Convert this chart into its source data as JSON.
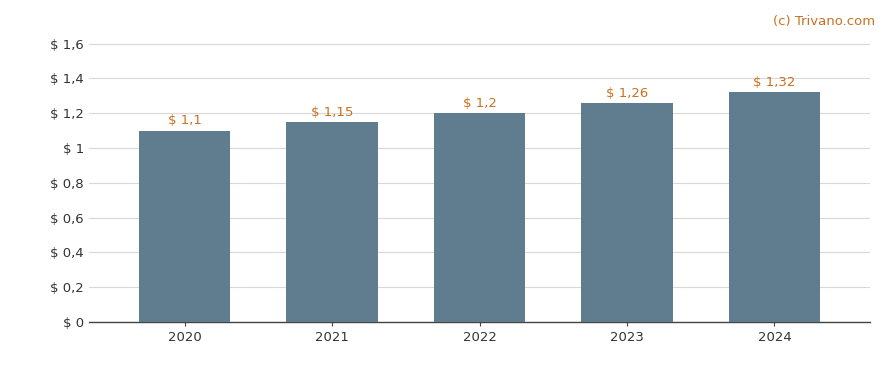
{
  "categories": [
    "2020",
    "2021",
    "2022",
    "2023",
    "2024"
  ],
  "values": [
    1.1,
    1.15,
    1.2,
    1.26,
    1.32
  ],
  "labels": [
    "$ 1,1",
    "$ 1,15",
    "$ 1,2",
    "$ 1,26",
    "$ 1,32"
  ],
  "bar_color": "#5f7d8e",
  "background_color": "#ffffff",
  "ytick_labels": [
    "$ 0",
    "$ 0,2",
    "$ 0,4",
    "$ 0,6",
    "$ 0,8",
    "$ 1",
    "$ 1,2",
    "$ 1,4",
    "$ 1,6"
  ],
  "ytick_values": [
    0,
    0.2,
    0.4,
    0.6,
    0.8,
    1.0,
    1.2,
    1.4,
    1.6
  ],
  "ylim": [
    0,
    1.68
  ],
  "watermark": "(c) Trivano.com",
  "label_color": "#c87020",
  "watermark_color": "#c87020",
  "grid_color": "#d8d8d8",
  "label_fontsize": 9.5,
  "tick_fontsize": 9.5,
  "watermark_fontsize": 9.5,
  "bar_width": 0.62
}
